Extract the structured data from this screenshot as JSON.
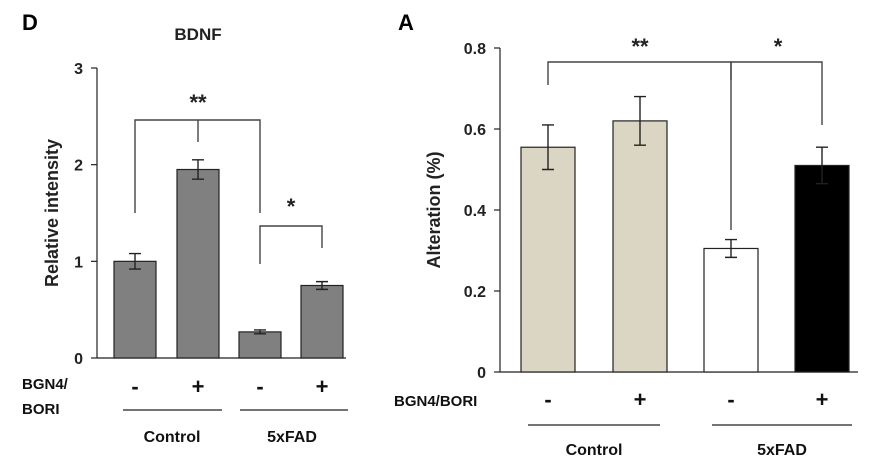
{
  "chart_data": [
    {
      "panel": "D",
      "type": "bar",
      "title": "BDNF",
      "ylabel": "Relative intensity",
      "ylim": [
        0,
        3
      ],
      "yticks": [
        "0",
        "1",
        "2",
        "3"
      ],
      "treatment_label": "BGN4/\nBORI",
      "treatment_label_lines": [
        "BGN4/",
        "BORI"
      ],
      "bars": [
        {
          "treatment": "-",
          "group": "Control",
          "value": 1.0,
          "error": 0.08,
          "color": "#808080"
        },
        {
          "treatment": "+",
          "group": "Control",
          "value": 1.95,
          "error": 0.1,
          "color": "#808080"
        },
        {
          "treatment": "-",
          "group": "5xFAD",
          "value": 0.27,
          "error": 0.02,
          "color": "#808080"
        },
        {
          "treatment": "+",
          "group": "5xFAD",
          "value": 0.75,
          "error": 0.04,
          "color": "#808080"
        }
      ],
      "groups": [
        "Control",
        "5xFAD"
      ],
      "significance": [
        {
          "label": "**",
          "between": "Control vs 5xFAD (-)"
        },
        {
          "label": "*",
          "between": "5xFAD - vs +"
        }
      ]
    },
    {
      "panel": "A",
      "type": "bar",
      "title": "",
      "ylabel": "Alteration (%)",
      "ylim": [
        0,
        0.8
      ],
      "yticks": [
        "0",
        "0.2",
        "0.4",
        "0.6",
        "0.8"
      ],
      "treatment_label": "BGN4/BORI",
      "bars": [
        {
          "treatment": "-",
          "group": "Control",
          "value": 0.555,
          "error": 0.055,
          "color": "#dbd5c3"
        },
        {
          "treatment": "+",
          "group": "Control",
          "value": 0.62,
          "error": 0.06,
          "color": "#dbd5c3"
        },
        {
          "treatment": "-",
          "group": "5xFAD",
          "value": 0.305,
          "error": 0.022,
          "color": "#ffffff"
        },
        {
          "treatment": "+",
          "group": "5xFAD",
          "value": 0.51,
          "error": 0.045,
          "color": "#000000"
        }
      ],
      "groups": [
        "Control",
        "5xFAD"
      ],
      "significance": [
        {
          "label": "**",
          "between": "Control vs 5xFAD (-)"
        },
        {
          "label": "*",
          "between": "5xFAD - vs +"
        }
      ]
    }
  ]
}
